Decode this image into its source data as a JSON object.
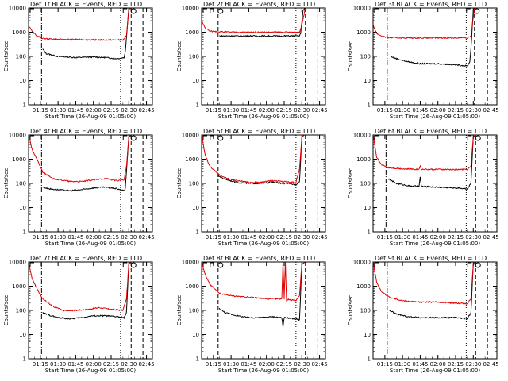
{
  "figure": {
    "x_ticks": [
      "01:15",
      "01:30",
      "01:45",
      "02:00",
      "02:15",
      "02:30",
      "02:45"
    ],
    "y_ticks": [
      "1",
      "10",
      "100",
      "1000",
      "10000"
    ],
    "xlabel": "Start Time (26-Aug-09 01:05:00)",
    "ylabel": "Counts/sec",
    "colors": {
      "events": "#000000",
      "lld": "#e00000"
    }
  },
  "chart_data": [
    {
      "type": "line",
      "title": "Det 1f BLACK = Events, RED = LLD",
      "xlabel": "Start Time (26-Aug-09 01:05:00)",
      "ylabel": "Counts/sec",
      "xlim": [
        "01:05",
        "02:50"
      ],
      "ylim": [
        1,
        10000
      ],
      "yscale": "log",
      "events_range": [
        "01:17",
        "02:27"
      ],
      "series": [
        {
          "name": "Events",
          "color": "#000000",
          "x": [
            "01:17",
            "01:20",
            "01:30",
            "01:45",
            "02:00",
            "02:10",
            "02:20",
            "02:26",
            "02:27",
            "02:30",
            "02:32"
          ],
          "y": [
            200,
            130,
            100,
            90,
            95,
            90,
            80,
            90,
            150,
            10000,
            10000
          ]
        },
        {
          "name": "LLD",
          "color": "#e00000",
          "x": [
            "01:05",
            "01:08",
            "01:12",
            "01:17",
            "01:30",
            "01:45",
            "02:00",
            "02:15",
            "02:25",
            "02:28",
            "02:30",
            "02:32"
          ],
          "y": [
            2000,
            1100,
            700,
            550,
            500,
            500,
            480,
            480,
            470,
            700,
            8000,
            10000
          ]
        }
      ],
      "markers": {
        "dashdot": [
          "01:16"
        ],
        "dotted": [
          "02:23"
        ],
        "dashed": [
          "02:32",
          "02:42"
        ]
      }
    },
    {
      "type": "line",
      "title": "Det 2f BLACK = Events, RED = LLD",
      "xlabel": "Start Time (26-Aug-09 01:05:00)",
      "ylabel": "Counts/sec",
      "xlim": [
        "01:05",
        "02:50"
      ],
      "ylim": [
        1,
        10000
      ],
      "yscale": "log",
      "events_range": [
        "01:20",
        "02:29"
      ],
      "series": [
        {
          "name": "Events",
          "color": "#000000",
          "x": [
            "01:20",
            "01:30",
            "01:45",
            "02:00",
            "02:15",
            "02:28",
            "02:29",
            "02:31",
            "02:33"
          ],
          "y": [
            700,
            700,
            700,
            700,
            700,
            700,
            900,
            8000,
            10000
          ]
        },
        {
          "name": "LLD",
          "color": "#e00000",
          "x": [
            "01:05",
            "01:08",
            "01:12",
            "01:20",
            "01:30",
            "01:45",
            "02:00",
            "02:15",
            "02:28",
            "02:30",
            "02:33"
          ],
          "y": [
            3000,
            1500,
            1100,
            1050,
            1000,
            1000,
            1000,
            1000,
            1000,
            2000,
            10000
          ]
        }
      ],
      "markers": {
        "dashdot": [],
        "dotted": [
          "02:25"
        ],
        "dashed": [
          "01:19",
          "02:33",
          "02:43"
        ]
      }
    },
    {
      "type": "line",
      "title": "Det 3f BLACK = Events, RED = LLD",
      "xlabel": "Start Time (26-Aug-09 01:05:00)",
      "ylabel": "Counts/sec",
      "xlim": [
        "01:05",
        "02:50"
      ],
      "ylim": [
        1,
        10000
      ],
      "yscale": "log",
      "events_range": [
        "01:20",
        "02:28"
      ],
      "series": [
        {
          "name": "Events",
          "color": "#000000",
          "x": [
            "01:20",
            "01:25",
            "01:35",
            "01:45",
            "02:00",
            "02:15",
            "02:25",
            "02:27",
            "02:28",
            "02:30",
            "02:32"
          ],
          "y": [
            100,
            80,
            60,
            50,
            50,
            45,
            40,
            60,
            200,
            8000,
            10000
          ]
        },
        {
          "name": "LLD",
          "color": "#e00000",
          "x": [
            "01:05",
            "01:08",
            "01:12",
            "01:17",
            "01:30",
            "01:45",
            "02:00",
            "02:15",
            "02:25",
            "02:28",
            "02:31"
          ],
          "y": [
            2000,
            900,
            700,
            600,
            580,
            580,
            580,
            580,
            580,
            700,
            10000
          ]
        }
      ],
      "markers": {
        "dashdot": [
          "01:17"
        ],
        "dotted": [
          "02:24"
        ],
        "dashed": [
          "02:31",
          "02:42"
        ]
      }
    },
    {
      "type": "line",
      "title": "Det 4f BLACK = Events, RED = LLD",
      "xlabel": "Start Time (26-Aug-09 01:05:00)",
      "ylabel": "Counts/sec",
      "xlim": [
        "01:05",
        "02:50"
      ],
      "ylim": [
        1,
        10000
      ],
      "yscale": "log",
      "events_range": [
        "01:17",
        "02:27"
      ],
      "series": [
        {
          "name": "Events",
          "color": "#000000",
          "x": [
            "01:17",
            "01:22",
            "01:30",
            "01:40",
            "01:50",
            "02:00",
            "02:10",
            "02:20",
            "02:26",
            "02:27",
            "02:30",
            "02:32"
          ],
          "y": [
            70,
            60,
            55,
            50,
            55,
            65,
            70,
            60,
            50,
            60,
            8000,
            10000
          ]
        },
        {
          "name": "LLD",
          "color": "#e00000",
          "x": [
            "01:05",
            "01:08",
            "01:12",
            "01:17",
            "01:25",
            "01:40",
            "01:50",
            "02:00",
            "02:10",
            "02:20",
            "02:26",
            "02:28",
            "02:30",
            "02:32"
          ],
          "y": [
            10000,
            2500,
            1000,
            300,
            160,
            120,
            120,
            140,
            160,
            130,
            140,
            500,
            8000,
            10000
          ]
        }
      ],
      "markers": {
        "dashdot": [
          "01:16"
        ],
        "dotted": [
          "02:23"
        ],
        "dashed": [
          "02:32",
          "02:42"
        ]
      }
    },
    {
      "type": "line",
      "title": "Det 5f BLACK = Events, RED = LLD",
      "xlabel": "Start Time (26-Aug-09 01:05:00)",
      "ylabel": "Counts/sec",
      "xlim": [
        "01:05",
        "02:50"
      ],
      "ylim": [
        1,
        10000
      ],
      "yscale": "log",
      "events_range": [
        "01:19",
        "02:28"
      ],
      "series": [
        {
          "name": "Events",
          "color": "#000000",
          "x": [
            "01:19",
            "01:25",
            "01:35",
            "01:45",
            "01:55",
            "02:05",
            "02:15",
            "02:25",
            "02:28",
            "02:30",
            "02:32"
          ],
          "y": [
            200,
            150,
            110,
            100,
            100,
            110,
            100,
            90,
            120,
            8000,
            10000
          ]
        },
        {
          "name": "LLD",
          "color": "#e00000",
          "x": [
            "01:05",
            "01:08",
            "01:12",
            "01:19",
            "01:25",
            "01:35",
            "01:45",
            "01:55",
            "02:05",
            "02:15",
            "02:25",
            "02:28",
            "02:30",
            "02:32"
          ],
          "y": [
            10000,
            1500,
            500,
            250,
            170,
            130,
            110,
            110,
            130,
            120,
            110,
            400,
            8000,
            10000
          ]
        }
      ],
      "markers": {
        "dashdot": [],
        "dotted": [
          "02:25"
        ],
        "dashed": [
          "01:19",
          "02:33",
          "02:43"
        ]
      }
    },
    {
      "type": "line",
      "title": "Det 6f BLACK = Events, RED = LLD",
      "xlabel": "Start Time (26-Aug-09 01:05:00)",
      "ylabel": "Counts/sec",
      "xlim": [
        "01:05",
        "02:50"
      ],
      "ylim": [
        1,
        10000
      ],
      "yscale": "log",
      "events_range": [
        "01:18",
        "02:28"
      ],
      "series": [
        {
          "name": "Events",
          "color": "#000000",
          "x": [
            "01:18",
            "01:25",
            "01:35",
            "01:44",
            "01:45",
            "01:46",
            "02:00",
            "02:15",
            "02:25",
            "02:28",
            "02:30",
            "02:32"
          ],
          "y": [
            150,
            100,
            80,
            75,
            180,
            75,
            70,
            65,
            60,
            100,
            8000,
            10000
          ]
        },
        {
          "name": "LLD",
          "color": "#e00000",
          "x": [
            "01:05",
            "01:08",
            "01:12",
            "01:18",
            "01:30",
            "01:44",
            "01:45",
            "01:46",
            "02:00",
            "02:15",
            "02:25",
            "02:28",
            "02:30",
            "02:32"
          ],
          "y": [
            10000,
            1200,
            600,
            450,
            400,
            380,
            550,
            380,
            380,
            370,
            380,
            500,
            8000,
            10000
          ]
        }
      ],
      "markers": {
        "dashdot": [
          "01:16"
        ],
        "dotted": [
          "02:24"
        ],
        "dashed": [
          "02:32",
          "02:42"
        ]
      }
    },
    {
      "type": "line",
      "title": "Det 7f BLACK = Events, RED = LLD",
      "xlabel": "Start Time (26-Aug-09 01:05:00)",
      "ylabel": "Counts/sec",
      "xlim": [
        "01:05",
        "02:50"
      ],
      "ylim": [
        1,
        10000
      ],
      "yscale": "log",
      "events_range": [
        "01:17",
        "02:27"
      ],
      "series": [
        {
          "name": "Events",
          "color": "#000000",
          "x": [
            "01:17",
            "01:22",
            "01:30",
            "01:40",
            "01:50",
            "02:00",
            "02:10",
            "02:20",
            "02:26",
            "02:28",
            "02:30",
            "02:32"
          ],
          "y": [
            80,
            65,
            50,
            45,
            50,
            60,
            60,
            55,
            50,
            80,
            8000,
            10000
          ]
        },
        {
          "name": "LLD",
          "color": "#e00000",
          "x": [
            "01:05",
            "01:08",
            "01:12",
            "01:17",
            "01:25",
            "01:35",
            "01:45",
            "01:55",
            "02:05",
            "02:15",
            "02:25",
            "02:28",
            "02:30",
            "02:32"
          ],
          "y": [
            10000,
            2000,
            800,
            300,
            150,
            100,
            100,
            110,
            130,
            110,
            100,
            300,
            8000,
            10000
          ]
        }
      ],
      "markers": {
        "dashdot": [
          "01:16"
        ],
        "dotted": [
          "02:23"
        ],
        "dashed": [
          "02:32",
          "02:42"
        ]
      }
    },
    {
      "type": "line",
      "title": "Det 8f BLACK = Events, RED = LLD",
      "xlabel": "Start Time (26-Aug-09 01:05:00)",
      "ylabel": "Counts/sec",
      "xlim": [
        "01:05",
        "02:50"
      ],
      "ylim": [
        1,
        10000
      ],
      "yscale": "log",
      "events_range": [
        "01:20",
        "02:29"
      ],
      "series": [
        {
          "name": "Events",
          "color": "#000000",
          "x": [
            "01:20",
            "01:25",
            "01:35",
            "01:45",
            "01:55",
            "02:05",
            "02:13",
            "02:14",
            "02:15",
            "02:25",
            "02:28",
            "02:30",
            "02:33"
          ],
          "y": [
            120,
            80,
            60,
            50,
            50,
            55,
            50,
            20,
            50,
            45,
            40,
            8000,
            10000
          ]
        },
        {
          "name": "LLD",
          "color": "#e00000",
          "x": [
            "01:05",
            "01:08",
            "01:12",
            "01:20",
            "01:30",
            "01:45",
            "02:00",
            "02:13",
            "02:14",
            "02:15",
            "02:16",
            "02:17",
            "02:18",
            "02:25",
            "02:28",
            "02:30",
            "02:33"
          ],
          "y": [
            10000,
            3000,
            1200,
            500,
            400,
            350,
            300,
            300,
            10000,
            300,
            10000,
            250,
            280,
            260,
            400,
            8000,
            10000
          ]
        }
      ],
      "markers": {
        "dashdot": [],
        "dotted": [
          "02:25"
        ],
        "dashed": [
          "01:19",
          "02:33",
          "02:43"
        ]
      }
    },
    {
      "type": "line",
      "title": "Det 9f BLACK = Events, RED = LLD",
      "xlabel": "Start Time (26-Aug-09 01:05:00)",
      "ylabel": "Counts/sec",
      "xlim": [
        "01:05",
        "02:50"
      ],
      "ylim": [
        1,
        10000
      ],
      "yscale": "log",
      "events_range": [
        "01:19",
        "02:28"
      ],
      "series": [
        {
          "name": "Events",
          "color": "#000000",
          "x": [
            "01:19",
            "01:25",
            "01:35",
            "01:45",
            "02:00",
            "02:15",
            "02:25",
            "02:28",
            "02:30",
            "02:32"
          ],
          "y": [
            100,
            70,
            55,
            50,
            50,
            50,
            45,
            80,
            8000,
            10000
          ]
        },
        {
          "name": "LLD",
          "color": "#e00000",
          "x": [
            "01:05",
            "01:08",
            "01:12",
            "01:19",
            "01:30",
            "01:45",
            "02:00",
            "02:15",
            "02:25",
            "02:28",
            "02:30",
            "02:32"
          ],
          "y": [
            10000,
            1500,
            600,
            350,
            250,
            220,
            220,
            200,
            190,
            300,
            8000,
            10000
          ]
        }
      ],
      "markers": {
        "dashdot": [
          "01:17"
        ],
        "dotted": [
          "02:24"
        ],
        "dashed": [
          "02:32",
          "02:42"
        ]
      }
    }
  ]
}
